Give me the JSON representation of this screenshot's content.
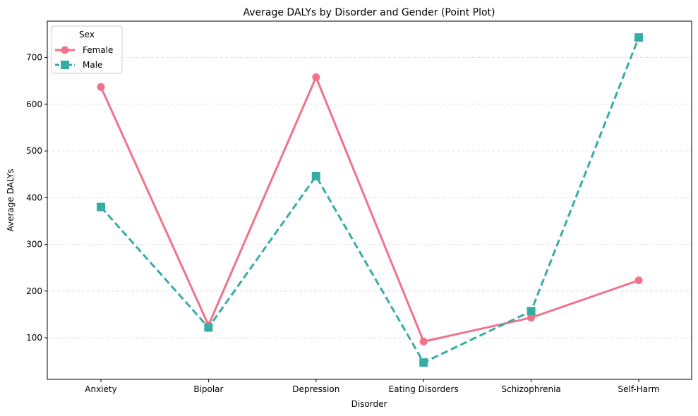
{
  "chart_data": {
    "type": "line",
    "title": "Average DALYs by Disorder and Gender (Point Plot)",
    "xlabel": "Disorder",
    "ylabel": "Average DALYs",
    "categories": [
      "Anxiety",
      "Bipolar",
      "Depression",
      "Eating Disorders",
      "Schizophrenia",
      "Self-Harm"
    ],
    "ylim": [
      11,
      778
    ],
    "yticks": [
      100,
      200,
      300,
      400,
      500,
      600,
      700
    ],
    "grid": "horizontal dashed",
    "legend": {
      "title": "Sex",
      "placement": "top-left"
    },
    "series": [
      {
        "name": "Female",
        "values": [
          637,
          127,
          658,
          92,
          143,
          223
        ],
        "color": "#f07389",
        "marker": "circle",
        "linestyle": "solid"
      },
      {
        "name": "Male",
        "values": [
          380,
          122,
          446,
          47,
          157,
          743
        ],
        "color": "#36ada4",
        "marker": "square",
        "linestyle": "dashed"
      }
    ]
  }
}
